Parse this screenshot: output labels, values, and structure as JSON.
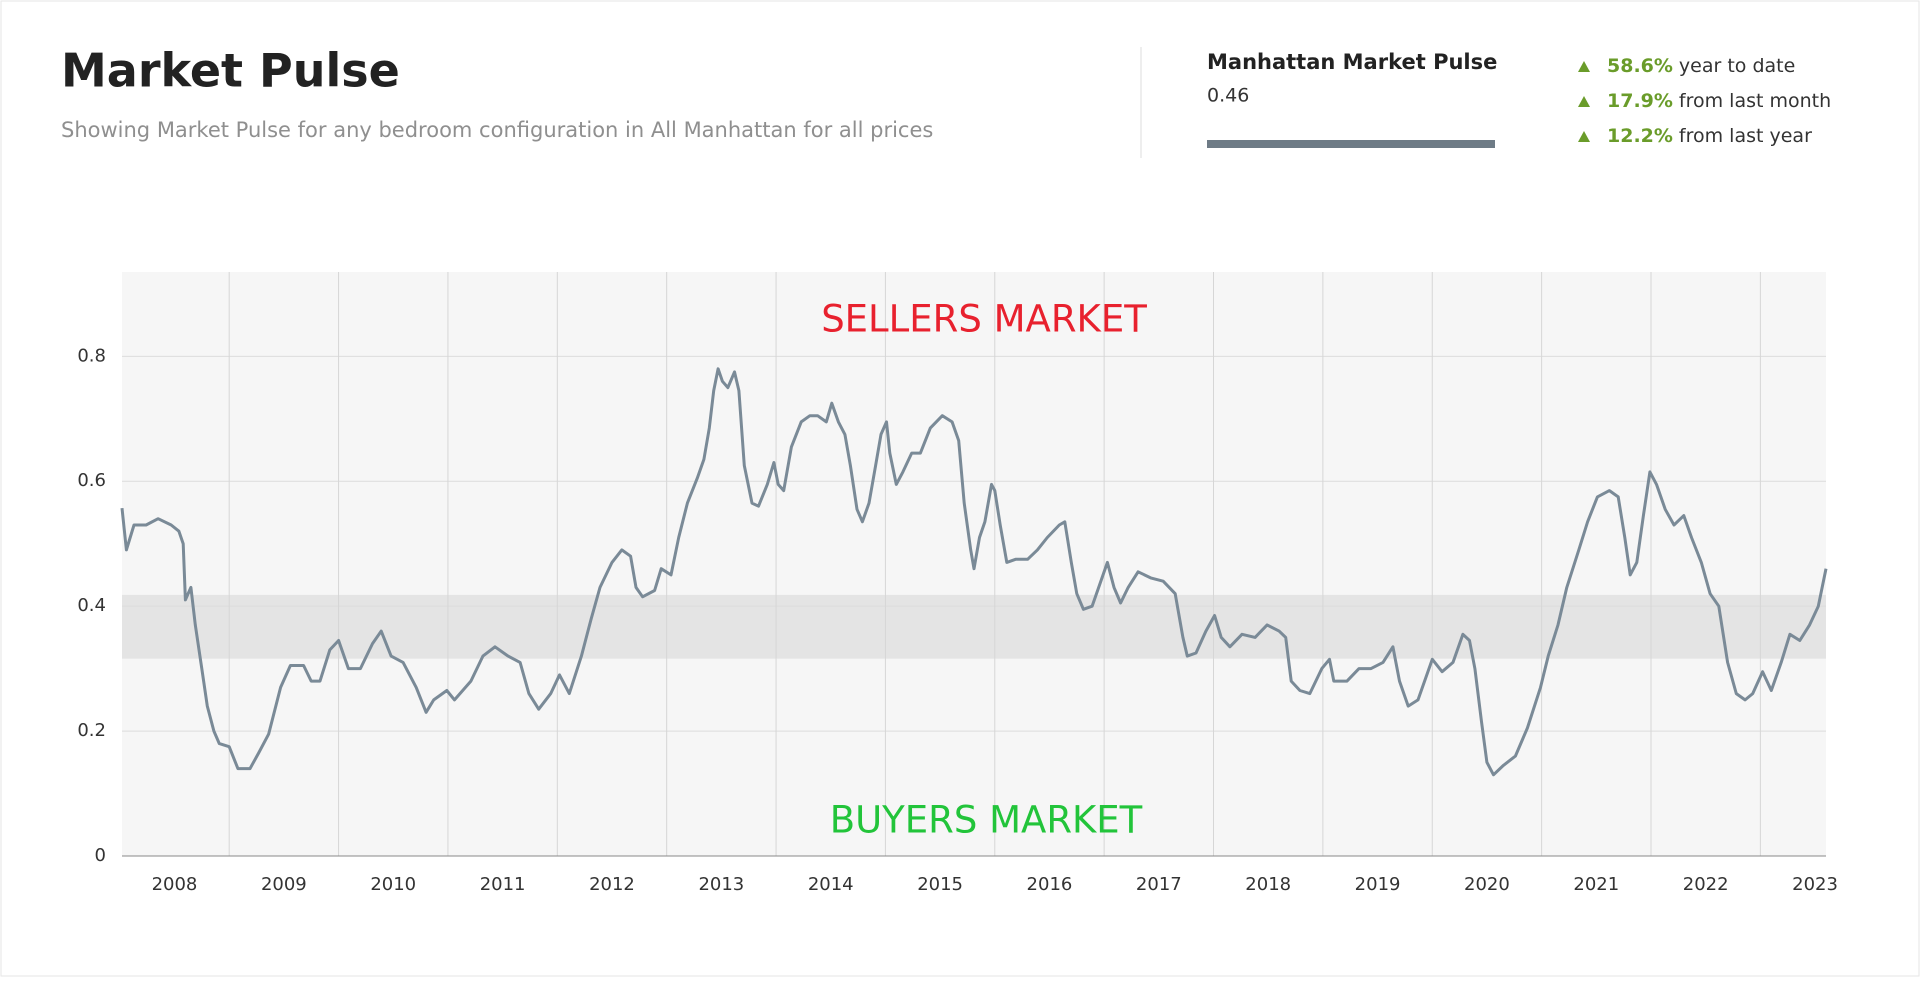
{
  "header": {
    "title": "Market Pulse",
    "subtitle": "Showing Market Pulse for any bedroom configuration in All Manhattan for all prices"
  },
  "summary": {
    "name": "Manhattan Market Pulse",
    "value": "0.46",
    "changes": [
      {
        "value": "58.6%",
        "text": "year to date"
      },
      {
        "value": "17.9%",
        "text": "from last month"
      },
      {
        "value": "12.2%",
        "text": "from last year"
      }
    ]
  },
  "chart_data": {
    "type": "line",
    "annotations": {
      "top": "SELLERS MARKET",
      "bottom": "BUYERS MARKET"
    },
    "neutral_band": [
      0.316,
      0.418
    ],
    "xlim": [
      2007.52,
      2023.1
    ],
    "xticks": [
      2008,
      2009,
      2010,
      2011,
      2012,
      2013,
      2014,
      2015,
      2016,
      2017,
      2018,
      2019,
      2020,
      2021,
      2022,
      2023
    ],
    "ylim": [
      0,
      0.935
    ],
    "yticks": [
      0,
      0.2,
      0.4,
      0.6,
      0.8
    ],
    "grid": true,
    "x": [
      2007.52,
      2007.56,
      2007.63,
      2007.74,
      2007.85,
      2007.97,
      2008.04,
      2008.08,
      2008.1,
      2008.15,
      2008.19,
      2008.25,
      2008.3,
      2008.36,
      2008.41,
      2008.5,
      2008.58,
      2008.69,
      2008.77,
      2008.86,
      2008.97,
      2009.06,
      2009.18,
      2009.25,
      2009.33,
      2009.42,
      2009.5,
      2009.59,
      2009.7,
      2009.81,
      2009.89,
      2009.98,
      2010.09,
      2010.21,
      2010.3,
      2010.37,
      2010.49,
      2010.56,
      2010.71,
      2010.82,
      2010.93,
      2011.05,
      2011.16,
      2011.24,
      2011.33,
      2011.44,
      2011.52,
      2011.61,
      2011.72,
      2011.81,
      2011.89,
      2012.0,
      2012.09,
      2012.17,
      2012.22,
      2012.28,
      2012.39,
      2012.45,
      2012.54,
      2012.61,
      2012.69,
      2012.78,
      2012.84,
      2012.89,
      2012.93,
      2012.97,
      2013.01,
      2013.06,
      2013.12,
      2013.16,
      2013.21,
      2013.28,
      2013.34,
      2013.42,
      2013.48,
      2013.52,
      2013.57,
      2013.64,
      2013.73,
      2013.81,
      2013.88,
      2013.96,
      2014.01,
      2014.07,
      2014.13,
      2014.18,
      2014.24,
      2014.29,
      2014.35,
      2014.41,
      2014.46,
      2014.51,
      2014.54,
      2014.6,
      2014.66,
      2014.74,
      2014.82,
      2014.91,
      2015.02,
      2015.11,
      2015.17,
      2015.22,
      2015.28,
      2015.31,
      2015.36,
      2015.41,
      2015.47,
      2015.5,
      2015.55,
      2015.61,
      2015.69,
      2015.8,
      2015.89,
      2015.98,
      2016.09,
      2016.14,
      2016.2,
      2016.25,
      2016.31,
      2016.39,
      2016.45,
      2016.53,
      2016.59,
      2016.65,
      2016.72,
      2016.81,
      2016.93,
      2017.04,
      2017.15,
      2017.22,
      2017.26,
      2017.34,
      2017.43,
      2017.51,
      2017.57,
      2017.65,
      2017.76,
      2017.88,
      2017.99,
      2018.1,
      2018.16,
      2018.21,
      2018.29,
      2018.38,
      2018.49,
      2018.56,
      2018.6,
      2018.72,
      2018.83,
      2018.94,
      2019.05,
      2019.14,
      2019.2,
      2019.28,
      2019.37,
      2019.45,
      2019.5,
      2019.59,
      2019.69,
      2019.78,
      2019.84,
      2019.89,
      2019.95,
      2020.0,
      2020.06,
      2020.15,
      2020.26,
      2020.37,
      2020.49,
      2020.56,
      2020.65,
      2020.73,
      2020.84,
      2020.92,
      2021.01,
      2021.12,
      2021.2,
      2021.26,
      2021.31,
      2021.37,
      2021.43,
      2021.49,
      2021.55,
      2021.63,
      2021.71,
      2021.8,
      2021.87,
      2021.96,
      2022.04,
      2022.12,
      2022.2,
      2022.28,
      2022.36,
      2022.43,
      2022.52,
      2022.6,
      2022.69,
      2022.77,
      2022.86,
      2022.95,
      2023.03,
      2023.1
    ],
    "series": [
      {
        "name": "Market Pulse",
        "color": "#7a8a97",
        "values": [
          0.557,
          0.49,
          0.53,
          0.53,
          0.54,
          0.53,
          0.52,
          0.5,
          0.41,
          0.43,
          0.37,
          0.3,
          0.24,
          0.2,
          0.18,
          0.175,
          0.14,
          0.14,
          0.165,
          0.195,
          0.27,
          0.305,
          0.305,
          0.28,
          0.28,
          0.33,
          0.345,
          0.3,
          0.3,
          0.34,
          0.36,
          0.32,
          0.31,
          0.27,
          0.23,
          0.25,
          0.265,
          0.25,
          0.28,
          0.32,
          0.335,
          0.32,
          0.31,
          0.26,
          0.235,
          0.26,
          0.29,
          0.26,
          0.32,
          0.38,
          0.43,
          0.47,
          0.49,
          0.48,
          0.43,
          0.415,
          0.425,
          0.46,
          0.45,
          0.51,
          0.565,
          0.605,
          0.635,
          0.685,
          0.745,
          0.78,
          0.76,
          0.75,
          0.775,
          0.745,
          0.625,
          0.565,
          0.56,
          0.595,
          0.63,
          0.595,
          0.585,
          0.655,
          0.695,
          0.705,
          0.705,
          0.695,
          0.725,
          0.695,
          0.675,
          0.625,
          0.555,
          0.535,
          0.565,
          0.625,
          0.675,
          0.695,
          0.645,
          0.595,
          0.615,
          0.645,
          0.645,
          0.685,
          0.705,
          0.695,
          0.665,
          0.565,
          0.49,
          0.46,
          0.51,
          0.535,
          0.595,
          0.585,
          0.53,
          0.47,
          0.475,
          0.475,
          0.49,
          0.51,
          0.53,
          0.535,
          0.47,
          0.42,
          0.395,
          0.4,
          0.43,
          0.47,
          0.43,
          0.405,
          0.43,
          0.455,
          0.445,
          0.44,
          0.42,
          0.35,
          0.32,
          0.325,
          0.36,
          0.385,
          0.35,
          0.335,
          0.355,
          0.35,
          0.37,
          0.36,
          0.35,
          0.28,
          0.265,
          0.26,
          0.3,
          0.315,
          0.28,
          0.28,
          0.3,
          0.3,
          0.31,
          0.335,
          0.28,
          0.24,
          0.25,
          0.29,
          0.315,
          0.295,
          0.31,
          0.355,
          0.345,
          0.3,
          0.215,
          0.15,
          0.13,
          0.145,
          0.16,
          0.205,
          0.27,
          0.32,
          0.37,
          0.43,
          0.49,
          0.535,
          0.575,
          0.585,
          0.575,
          0.51,
          0.45,
          0.47,
          0.545,
          0.615,
          0.595,
          0.555,
          0.53,
          0.545,
          0.51,
          0.47,
          0.42,
          0.4,
          0.31,
          0.26,
          0.25,
          0.26,
          0.295,
          0.265,
          0.31,
          0.355,
          0.345,
          0.37,
          0.4,
          0.46
        ]
      }
    ]
  }
}
